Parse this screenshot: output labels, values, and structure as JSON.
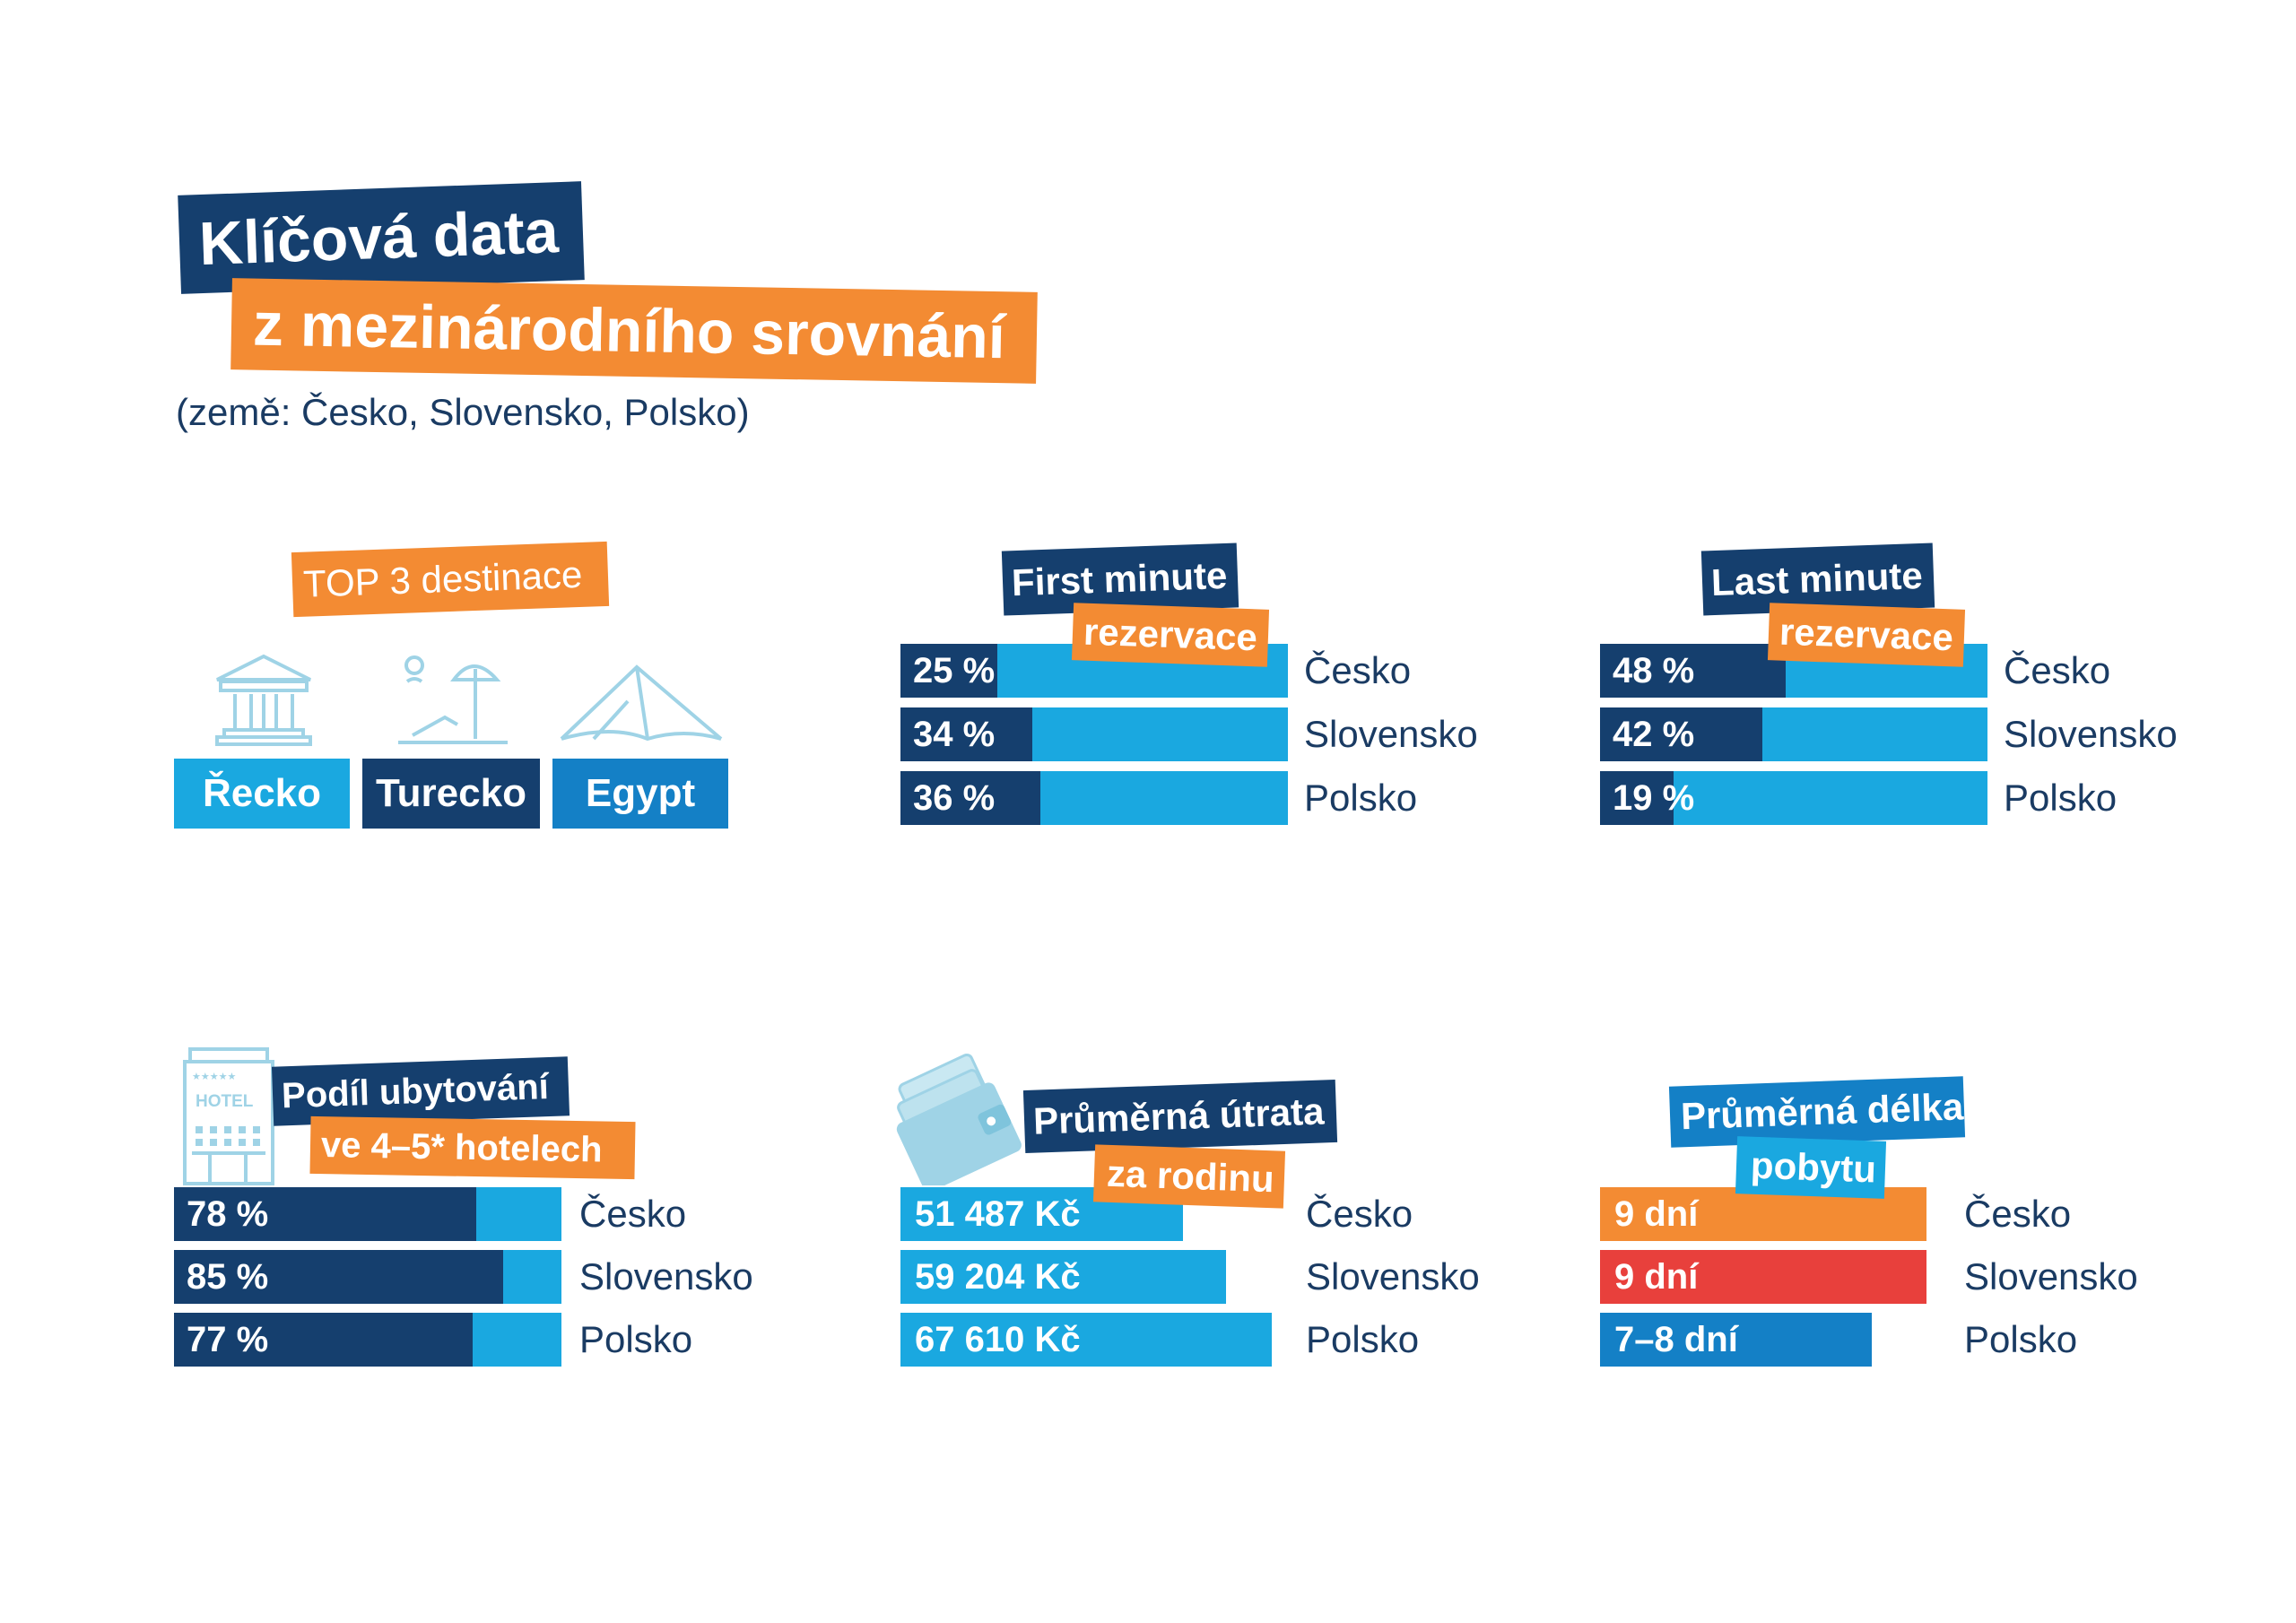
{
  "header": {
    "title_line1": "Klíčová data",
    "title_line2": "z mezinárodního srovnání",
    "subtitle": "(země: Česko, Slovensko, Polsko)"
  },
  "colors": {
    "navy": "#153f6e",
    "orange": "#f38b33",
    "sky_blue": "#1aa8e0",
    "mid_blue": "#1480c6",
    "red": "#e8403c",
    "icon_light_blue": "#9fd3e6"
  },
  "icons": [
    "temple-icon",
    "beach-umbrella-icon",
    "pyramids-icon",
    "hotel-icon",
    "wallet-icon"
  ],
  "top_destinations": {
    "label": "TOP 3 destinace",
    "items": [
      "Řecko",
      "Turecko",
      "Egypt"
    ]
  },
  "first_minute": {
    "title_line1": "First minute",
    "title_line2": "rezervace"
  },
  "last_minute": {
    "title_line1": "Last minute",
    "title_line2": "rezervace"
  },
  "hotels": {
    "title_line1": "Podíl ubytování",
    "title_line2": "ve 4–5* hotelech",
    "icon_text": "HOTEL"
  },
  "spending": {
    "title_line1": "Průměrná útrata",
    "title_line2": "za rodinu"
  },
  "stay_length": {
    "title_line1": "Průměrná délka",
    "title_line2": "pobytu"
  },
  "chart_data": [
    {
      "type": "bar",
      "title": "First minute rezervace",
      "categories": [
        "Česko",
        "Slovensko",
        "Polsko"
      ],
      "values": [
        25,
        34,
        36
      ],
      "labels": [
        "25 %",
        "34 %",
        "36 %"
      ],
      "unit": "%",
      "ylim": [
        0,
        100
      ]
    },
    {
      "type": "bar",
      "title": "Last minute rezervace",
      "categories": [
        "Česko",
        "Slovensko",
        "Polsko"
      ],
      "values": [
        48,
        42,
        19
      ],
      "labels": [
        "48 %",
        "42 %",
        "19 %"
      ],
      "unit": "%",
      "ylim": [
        0,
        100
      ]
    },
    {
      "type": "bar",
      "title": "Podíl ubytování ve 4–5* hotelech",
      "categories": [
        "Česko",
        "Slovensko",
        "Polsko"
      ],
      "values": [
        78,
        85,
        77
      ],
      "labels": [
        "78 %",
        "85 %",
        "77 %"
      ],
      "unit": "%",
      "ylim": [
        0,
        100
      ]
    },
    {
      "type": "bar",
      "title": "Průměrná útrata za rodinu",
      "categories": [
        "Česko",
        "Slovensko",
        "Polsko"
      ],
      "values": [
        51487,
        59204,
        67610
      ],
      "labels": [
        "51 487 Kč",
        "59 204 Kč",
        "67 610 Kč"
      ],
      "unit": "Kč"
    },
    {
      "type": "bar",
      "title": "Průměrná délka pobytu",
      "categories": [
        "Česko",
        "Slovensko",
        "Polsko"
      ],
      "values": [
        9,
        9,
        7.5
      ],
      "labels": [
        "9 dní",
        "9 dní",
        "7–8 dní"
      ],
      "unit": "dní",
      "colors": [
        "#f38b33",
        "#e8403c",
        "#1480c6"
      ]
    }
  ]
}
